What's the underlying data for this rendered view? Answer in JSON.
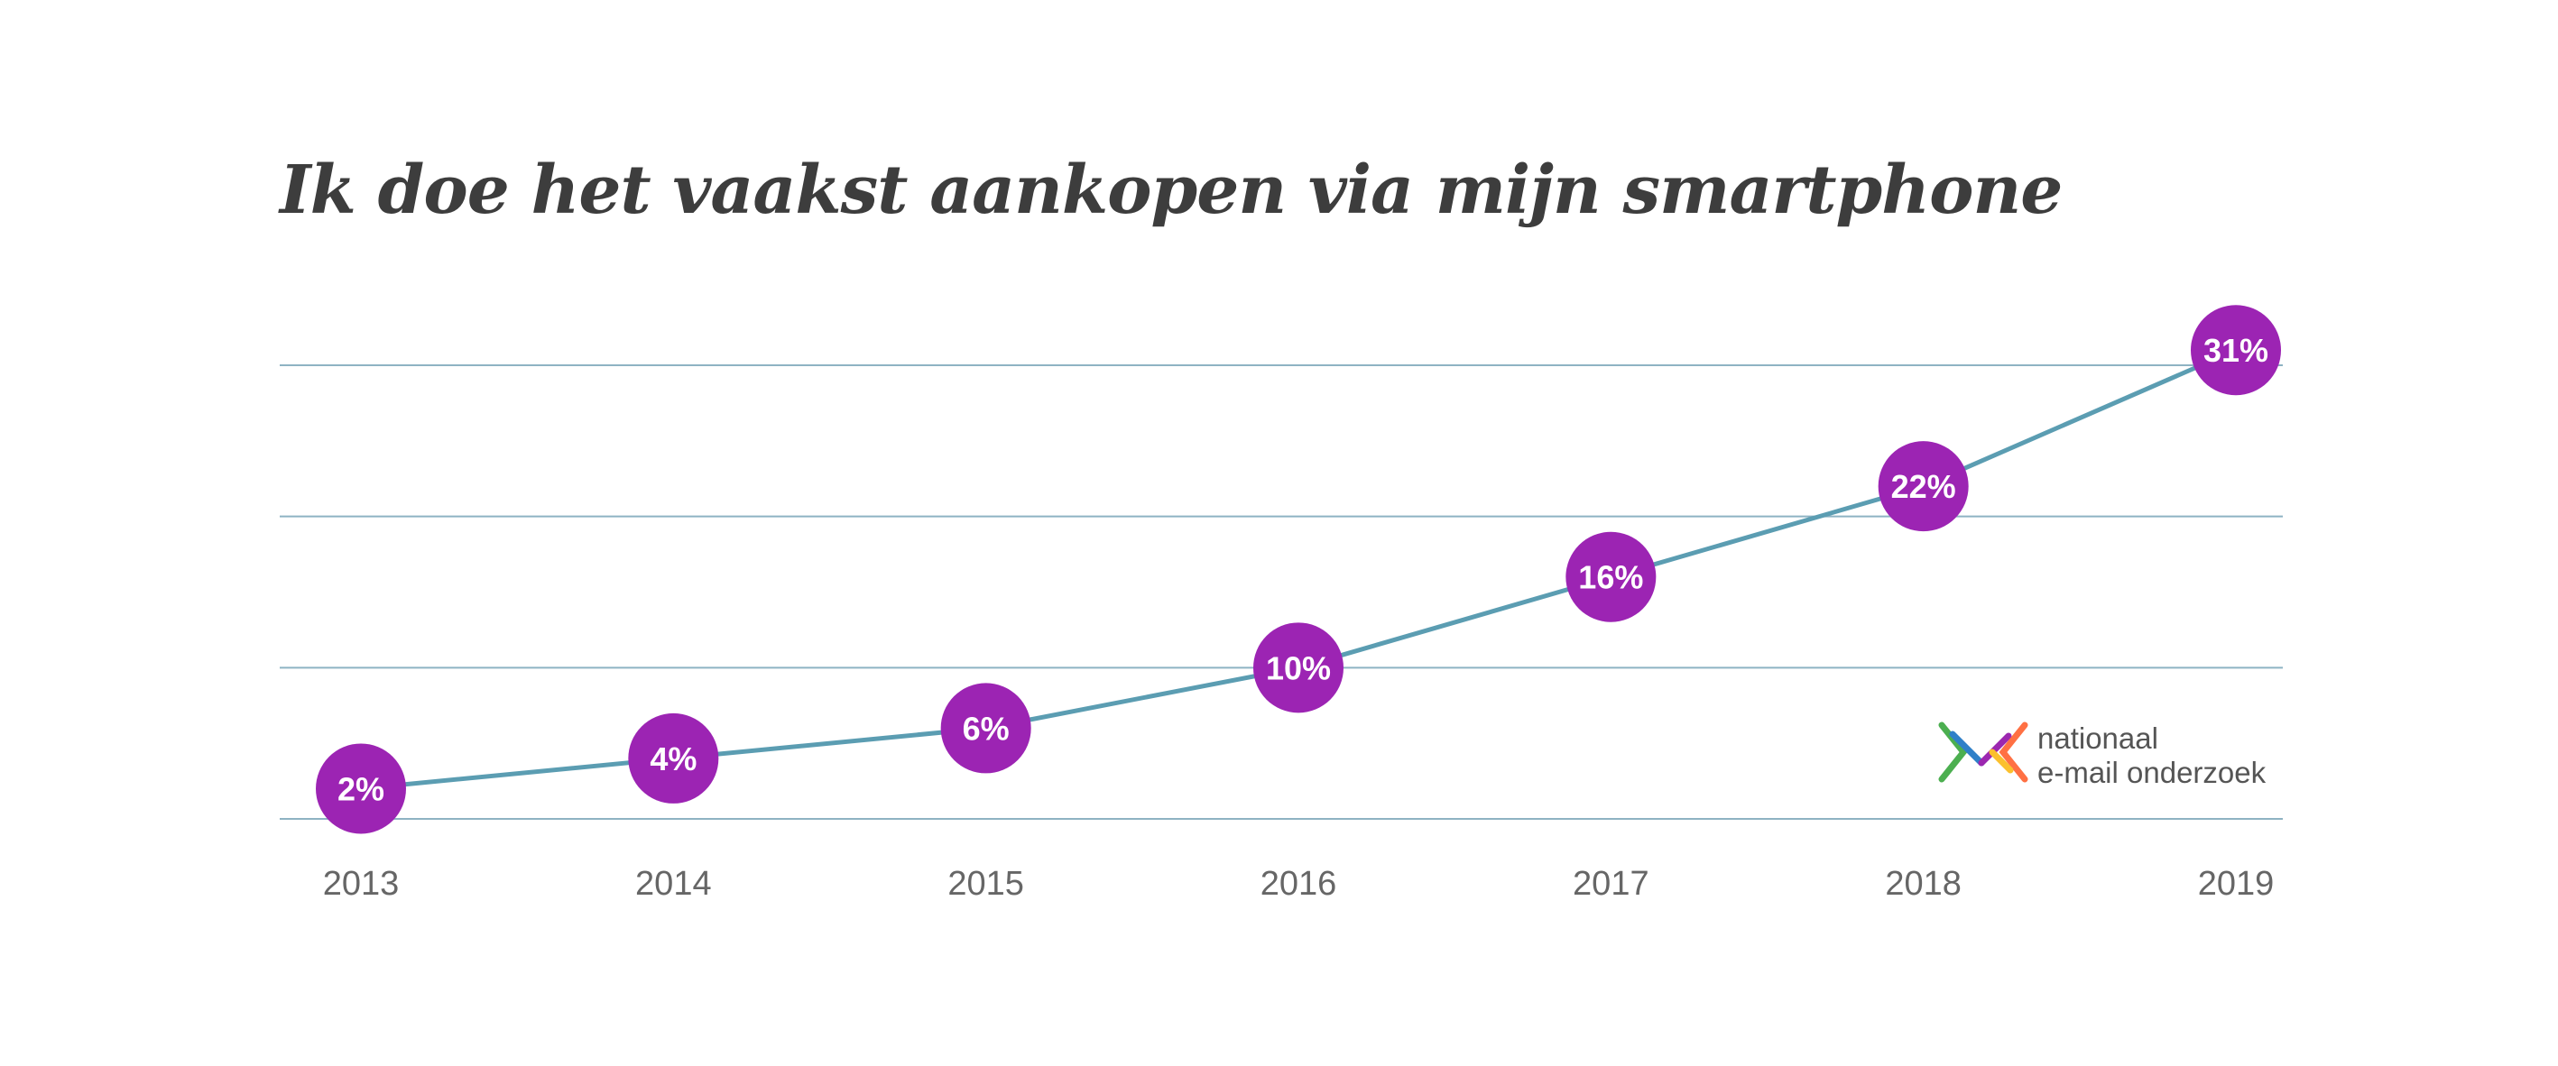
{
  "chart_data": {
    "type": "line",
    "title": "Ik doe het vaakst aankopen via mijn smartphone",
    "xlabel": "",
    "ylabel": "",
    "categories": [
      "2013",
      "2014",
      "2015",
      "2016",
      "2017",
      "2018",
      "2019"
    ],
    "values": [
      2,
      4,
      6,
      10,
      16,
      22,
      31
    ],
    "labels": [
      "2%",
      "4%",
      "6%",
      "10%",
      "16%",
      "22%",
      "31%"
    ],
    "ylim": [
      0,
      30
    ],
    "grid": true,
    "legend": "none",
    "colors": {
      "line": "#5b9db2",
      "marker": "#9c24b3",
      "grid": "#8eb3c3",
      "tick": "#666666"
    }
  },
  "brand": {
    "line1": "nationaal",
    "line2": "e-mail onderzoek"
  }
}
